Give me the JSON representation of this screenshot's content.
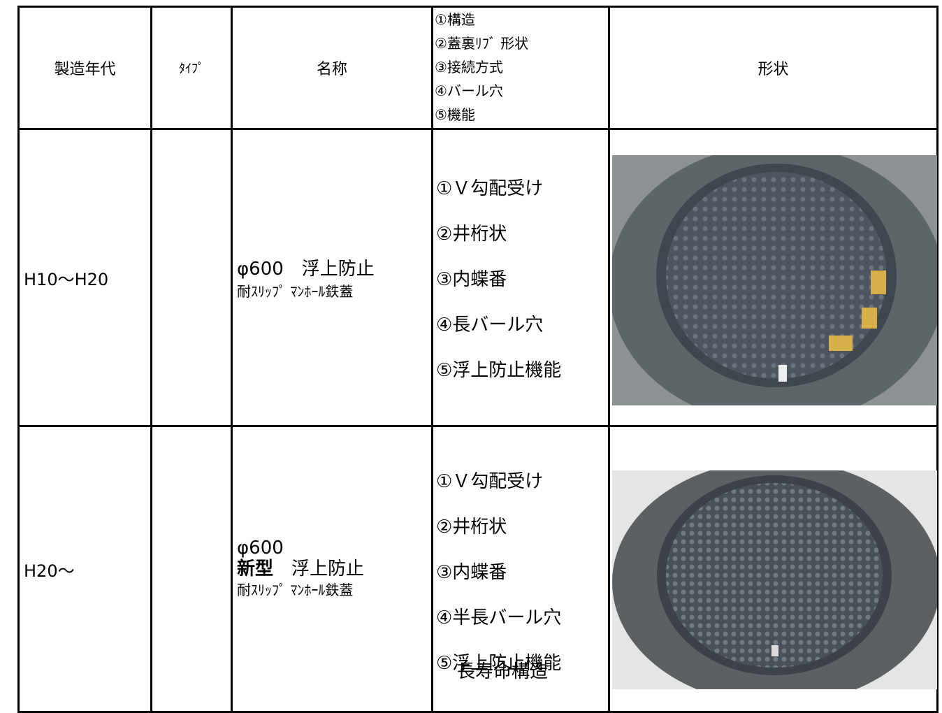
{
  "table": {
    "header": {
      "year": "製造年代",
      "type": "ﾀｲﾌﾟ",
      "name": "名称",
      "features": [
        "①構造",
        "②蓋裏ﾘﾌﾞ 形状",
        "③接続方式",
        "④バール穴",
        "⑤機能"
      ],
      "shape": "形状"
    },
    "rows": [
      {
        "year": "H10～H20",
        "name": [
          "φ600　浮上防止",
          "耐ｽﾘｯﾌﾟ ﾏﾝﾎｰﾙ鉄蓋"
        ],
        "features": [
          "①Ｖ勾配受け",
          "②井桁状",
          "③内蝶番",
          "④長バール穴",
          "⑤浮上防止機能"
        ]
      },
      {
        "year": "H20～",
        "name_top": "φ600",
        "name_bold": "新型",
        "name_rest": "浮上防止",
        "name_bottom": "耐ｽﾘｯﾌﾟ ﾏﾝﾎｰﾙ鉄蓋",
        "features": [
          "①Ｖ勾配受け",
          "②井桁状",
          "③内蝶番",
          "④半長バール穴",
          "⑤浮上防止機能"
        ],
        "features_overlap": "長寿命構造"
      }
    ]
  }
}
